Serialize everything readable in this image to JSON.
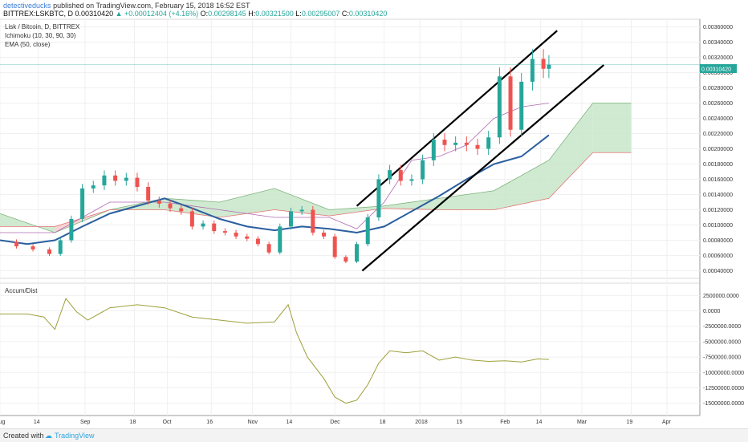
{
  "header": {
    "author": "detectiveducks",
    "published": "published on TradingView.com, February 15, 2018 16:52 EST",
    "symbol": "BITTREX:LSKBTC, D",
    "last": "0.00310420",
    "change": "▲ +0.00012404 (+4.16%)",
    "o_label": "O:",
    "o_val": "0.00298145",
    "h_label": "H:",
    "h_val": "0.00321500",
    "l_label": "L:",
    "l_val": "0.00295007",
    "c_label": "C:",
    "c_val": "0.00310420"
  },
  "legend": {
    "title": "Lisk / Bitcoin, D, BITTREX",
    "ichimoku": "Ichimoku (10, 30, 90, 30)",
    "ema": "EMA (50, close)",
    "accum": "Accum/Dist"
  },
  "price_badge": "0.00310420",
  "footer": {
    "created": "Created with",
    "brand": "TradingView"
  },
  "colors": {
    "up": "#26a69a",
    "down": "#ef5350",
    "ema": "#2a5f9e",
    "channel": "#000000",
    "adl": "#9ea03a",
    "span_up": "#c8e6c9",
    "span_down": "#f8cdcd"
  },
  "chart_data": [
    {
      "type": "line",
      "title": "Lisk / Bitcoin, D, BITTREX",
      "ylim": [
        0.0003,
        0.0037
      ],
      "ytick_labels": [
        "0.00360000",
        "0.00340000",
        "0.00320000",
        "0.00300000",
        "0.00280000",
        "0.00260000",
        "0.00240000",
        "0.00220000",
        "0.00200000",
        "0.00180000",
        "0.00160000",
        "0.00140000",
        "0.00120000",
        "0.00100000",
        "0.00080000",
        "0.00060000",
        "0.00040000"
      ],
      "ytick_values": [
        0.0036,
        0.0034,
        0.0032,
        0.003,
        0.0028,
        0.0026,
        0.0024,
        0.0022,
        0.002,
        0.0018,
        0.0016,
        0.0014,
        0.0012,
        0.001,
        0.0008,
        0.0006,
        0.0004
      ],
      "x_labels": [
        "Aug",
        "14",
        "Sep",
        "18",
        "Oct",
        "16",
        "Nov",
        "14",
        "Dec",
        "18",
        "2018",
        "15",
        "Feb",
        "14",
        "Mar",
        "19",
        "Apr"
      ],
      "x_days": [
        0,
        14,
        31,
        49,
        61,
        77,
        92,
        106,
        122,
        140,
        153,
        168,
        184,
        197,
        212,
        230,
        243
      ],
      "series": [
        {
          "name": "close",
          "x": [
            0,
            6,
            12,
            18,
            22,
            26,
            30,
            34,
            38,
            42,
            46,
            50,
            54,
            58,
            62,
            66,
            70,
            74,
            78,
            82,
            86,
            90,
            94,
            98,
            102,
            106,
            110,
            114,
            118,
            122,
            126,
            130,
            134,
            138,
            142,
            146,
            150,
            154,
            158,
            162,
            166,
            170,
            174,
            178,
            182,
            186,
            190,
            194,
            198,
            200
          ],
          "values": [
            0.00078,
            0.00072,
            0.00068,
            0.00062,
            0.0008,
            0.00108,
            0.00148,
            0.00152,
            0.00165,
            0.00158,
            0.00162,
            0.0015,
            0.00132,
            0.00128,
            0.00122,
            0.00118,
            0.00098,
            0.00102,
            0.00092,
            0.0009,
            0.00085,
            0.00082,
            0.00075,
            0.00064,
            0.00098,
            0.00118,
            0.0012,
            0.0009,
            0.00085,
            0.00058,
            0.00052,
            0.00075,
            0.0011,
            0.0016,
            0.00172,
            0.00158,
            0.0016,
            0.00185,
            0.00212,
            0.00205,
            0.00208,
            0.00205,
            0.002,
            0.00215,
            0.00295,
            0.00225,
            0.00288,
            0.00318,
            0.00305,
            0.0031042
          ]
        },
        {
          "name": "EMA (50, close)",
          "x": [
            0,
            10,
            20,
            30,
            40,
            50,
            60,
            70,
            80,
            90,
            100,
            110,
            120,
            130,
            140,
            150,
            160,
            170,
            180,
            190,
            200
          ],
          "values": [
            0.0008,
            0.00075,
            0.0008,
            0.00098,
            0.00115,
            0.00125,
            0.00135,
            0.00122,
            0.00108,
            0.00098,
            0.00093,
            0.00098,
            0.00095,
            0.0009,
            0.00098,
            0.00118,
            0.00138,
            0.0016,
            0.0018,
            0.0019,
            0.00218
          ]
        },
        {
          "name": "Ichimoku base",
          "x": [
            0,
            20,
            40,
            60,
            80,
            100,
            120,
            130,
            140,
            150,
            160,
            170,
            180,
            190,
            200
          ],
          "values": [
            0.0009,
            0.0009,
            0.0013,
            0.0013,
            0.0012,
            0.0011,
            0.0011,
            0.00095,
            0.0013,
            0.00185,
            0.0019,
            0.00205,
            0.0024,
            0.00255,
            0.0026
          ]
        },
        {
          "name": "Ichimoku span A",
          "x": [
            0,
            20,
            40,
            60,
            80,
            100,
            120,
            140,
            160,
            180,
            200,
            216,
            230
          ],
          "values": [
            0.00115,
            0.0009,
            0.0012,
            0.00135,
            0.0013,
            0.00148,
            0.0012,
            0.00125,
            0.00135,
            0.00145,
            0.00185,
            0.0026,
            0.0026
          ]
        },
        {
          "name": "Ichimoku span B",
          "x": [
            0,
            20,
            40,
            60,
            80,
            100,
            120,
            140,
            160,
            180,
            200,
            216,
            230
          ],
          "values": [
            0.00098,
            0.00098,
            0.0012,
            0.0012,
            0.0011,
            0.0012,
            0.00112,
            0.00122,
            0.0012,
            0.0012,
            0.00135,
            0.00195,
            0.00195
          ]
        },
        {
          "name": "Channel upper",
          "x": [
            130,
            203
          ],
          "values": [
            0.00125,
            0.00355
          ]
        },
        {
          "name": "Channel lower",
          "x": [
            132,
            220
          ],
          "values": [
            0.0004,
            0.0031
          ]
        }
      ]
    },
    {
      "type": "line",
      "title": "Accum/Dist",
      "ylim": [
        -17000000,
        4500000
      ],
      "ytick_labels": [
        "2500000.0000",
        "0.0000",
        "-2500000.0000",
        "-5000000.0000",
        "-7500000.0000",
        "-10000000.0000",
        "-12500000.0000",
        "-15000000.0000"
      ],
      "ytick_values": [
        2500000,
        0,
        -2500000,
        -5000000,
        -7500000,
        -10000000,
        -12500000,
        -15000000
      ],
      "series": [
        {
          "name": "Accum/Dist",
          "x": [
            0,
            10,
            16,
            20,
            24,
            28,
            32,
            40,
            50,
            60,
            70,
            80,
            90,
            100,
            105,
            108,
            112,
            118,
            122,
            126,
            130,
            134,
            138,
            142,
            148,
            154,
            160,
            166,
            172,
            178,
            184,
            190,
            196,
            200
          ],
          "values": [
            -500000,
            -500000,
            -1000000,
            -3000000,
            2000000,
            -200000,
            -1500000,
            500000,
            1000000,
            500000,
            -1000000,
            -1500000,
            -2000000,
            -1800000,
            1000000,
            -3500000,
            -7500000,
            -11000000,
            -14000000,
            -15000000,
            -14500000,
            -12000000,
            -8500000,
            -6500000,
            -6800000,
            -6500000,
            -8000000,
            -7500000,
            -8000000,
            -8200000,
            -8100000,
            -8300000,
            -7800000,
            -7900000
          ]
        }
      ]
    }
  ]
}
